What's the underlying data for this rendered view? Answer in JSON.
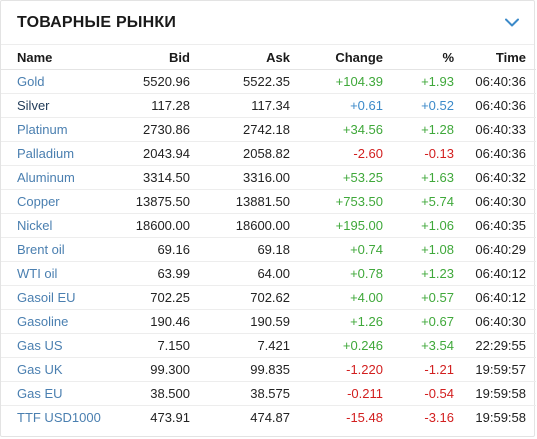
{
  "header": {
    "title": "ТОВАРНЫЕ РЫНКИ",
    "toggle_icon": "chevron-down-icon"
  },
  "columns": {
    "name": "Name",
    "bid": "Bid",
    "ask": "Ask",
    "change": "Change",
    "pct": "%",
    "time": "Time"
  },
  "colors": {
    "up": "#3fa83a",
    "flat": "#3c8ac9",
    "down": "#d21f1f",
    "link": "#4a7fb0"
  },
  "rows": [
    {
      "name": "Gold",
      "bid": "5520.96",
      "ask": "5522.35",
      "change": "+104.39",
      "pct": "+1.93",
      "time": "06:40:36",
      "dir": "up"
    },
    {
      "name": "Silver",
      "bid": "117.28",
      "ask": "117.34",
      "change": "+0.61",
      "pct": "+0.52",
      "time": "06:40:36",
      "dir": "flat"
    },
    {
      "name": "Platinum",
      "bid": "2730.86",
      "ask": "2742.18",
      "change": "+34.56",
      "pct": "+1.28",
      "time": "06:40:33",
      "dir": "up"
    },
    {
      "name": "Palladium",
      "bid": "2043.94",
      "ask": "2058.82",
      "change": "-2.60",
      "pct": "-0.13",
      "time": "06:40:36",
      "dir": "down"
    },
    {
      "name": "Aluminum",
      "bid": "3314.50",
      "ask": "3316.00",
      "change": "+53.25",
      "pct": "+1.63",
      "time": "06:40:32",
      "dir": "up"
    },
    {
      "name": "Copper",
      "bid": "13875.50",
      "ask": "13881.50",
      "change": "+753.50",
      "pct": "+5.74",
      "time": "06:40:30",
      "dir": "up"
    },
    {
      "name": "Nickel",
      "bid": "18600.00",
      "ask": "18600.00",
      "change": "+195.00",
      "pct": "+1.06",
      "time": "06:40:35",
      "dir": "up"
    },
    {
      "name": "Brent oil",
      "bid": "69.16",
      "ask": "69.18",
      "change": "+0.74",
      "pct": "+1.08",
      "time": "06:40:29",
      "dir": "up"
    },
    {
      "name": "WTI oil",
      "bid": "63.99",
      "ask": "64.00",
      "change": "+0.78",
      "pct": "+1.23",
      "time": "06:40:12",
      "dir": "up"
    },
    {
      "name": "Gasoil EU",
      "bid": "702.25",
      "ask": "702.62",
      "change": "+4.00",
      "pct": "+0.57",
      "time": "06:40:12",
      "dir": "up"
    },
    {
      "name": "Gasoline",
      "bid": "190.46",
      "ask": "190.59",
      "change": "+1.26",
      "pct": "+0.67",
      "time": "06:40:30",
      "dir": "up"
    },
    {
      "name": "Gas US",
      "bid": "7.150",
      "ask": "7.421",
      "change": "+0.246",
      "pct": "+3.54",
      "time": "22:29:55",
      "dir": "up"
    },
    {
      "name": "Gas UK",
      "bid": "99.300",
      "ask": "99.835",
      "change": "-1.220",
      "pct": "-1.21",
      "time": "19:59:57",
      "dir": "down"
    },
    {
      "name": "Gas EU",
      "bid": "38.500",
      "ask": "38.575",
      "change": "-0.211",
      "pct": "-0.54",
      "time": "19:59:58",
      "dir": "down"
    },
    {
      "name": "TTF USD1000",
      "bid": "473.91",
      "ask": "474.87",
      "change": "-15.48",
      "pct": "-3.16",
      "time": "19:59:58",
      "dir": "down"
    }
  ]
}
